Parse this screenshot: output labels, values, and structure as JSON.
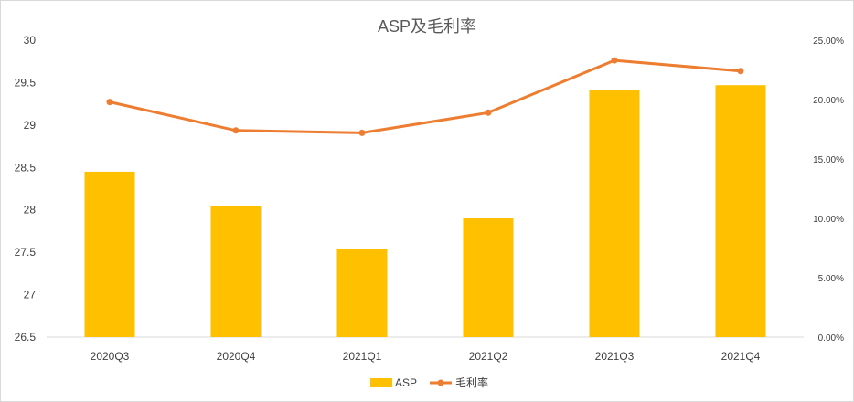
{
  "chart_data": {
    "type": "bar+line",
    "title": "ASP及毛利率",
    "categories": [
      "2020Q3",
      "2020Q4",
      "2021Q1",
      "2021Q2",
      "2021Q3",
      "2021Q4"
    ],
    "series": [
      {
        "name": "ASP",
        "type": "bar",
        "axis": "left",
        "color": "#FFC000",
        "values": [
          28.45,
          28.05,
          27.54,
          27.9,
          29.41,
          29.47
        ]
      },
      {
        "name": "毛利率",
        "type": "line",
        "axis": "right",
        "color": "#ED7D31",
        "values": [
          0.198,
          0.174,
          0.172,
          0.189,
          0.233,
          0.224
        ]
      }
    ],
    "y_left": {
      "min": 26.5,
      "max": 30,
      "ticks": [
        26.5,
        27,
        27.5,
        28,
        28.5,
        29,
        29.5,
        30
      ],
      "tick_labels": [
        "26.5",
        "27",
        "27.5",
        "28",
        "28.5",
        "29",
        "29.5",
        "30"
      ]
    },
    "y_right": {
      "min": 0,
      "max": 0.25,
      "ticks": [
        0,
        0.05,
        0.1,
        0.15,
        0.2,
        0.25
      ],
      "tick_labels": [
        "0.00%",
        "5.00%",
        "10.00%",
        "15.00%",
        "20.00%",
        "25.00%"
      ]
    },
    "grid": false,
    "legend": {
      "position": "bottom",
      "entries": [
        "ASP",
        "毛利率"
      ]
    }
  }
}
